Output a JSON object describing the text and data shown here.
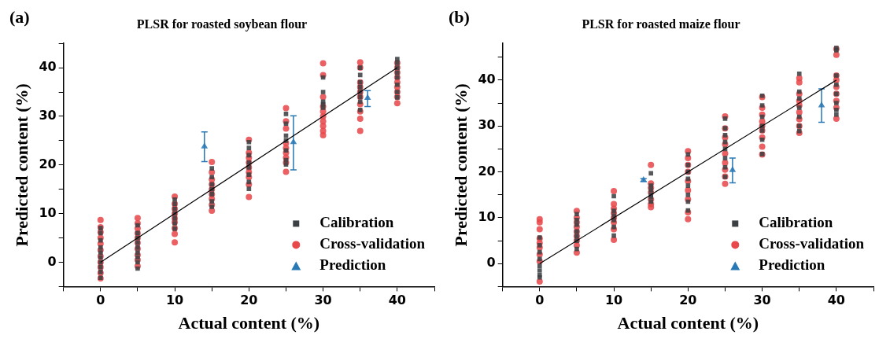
{
  "chart_data": [
    {
      "type": "scatter",
      "title": "PLSR for roasted soybean flour",
      "xlabel": "Actual content (%)",
      "ylabel": "Predicted content (%)",
      "annotations": [
        "(a)"
      ],
      "xlim": [
        -5,
        45
      ],
      "ylim": [
        -5,
        45
      ],
      "xticks": [
        {
          "value": -5,
          "label": null
        },
        0,
        {
          "value": 5,
          "label": null
        },
        10,
        {
          "value": 15,
          "label": null
        },
        20,
        {
          "value": 25,
          "label": null
        },
        30,
        {
          "value": 35,
          "label": null
        },
        40,
        {
          "value": 45,
          "label": null
        }
      ],
      "yticks": [
        {
          "value": -5,
          "label": null
        },
        0,
        {
          "value": 5,
          "label": null
        },
        10,
        {
          "value": 15,
          "label": null
        },
        20,
        {
          "value": 25,
          "label": null
        },
        30,
        {
          "value": 35,
          "label": null
        },
        40,
        {
          "value": 45,
          "label": null
        }
      ],
      "grid": false,
      "legend": "bottom right",
      "series": [
        {
          "type": "line",
          "color": "#000000",
          "marker": "none",
          "x": [
            0,
            40
          ],
          "values": [
            0,
            40
          ]
        },
        {
          "name": "Calibration",
          "color": "#3c4043",
          "marker": "square",
          "x": [
            0,
            0,
            0,
            0,
            0,
            0,
            0,
            0,
            0,
            0,
            5,
            5,
            5,
            5,
            5,
            5,
            5,
            5,
            5,
            10,
            10,
            10,
            10,
            10,
            10,
            10,
            15,
            15,
            15,
            15,
            15,
            15,
            15,
            20,
            20,
            20,
            20,
            20,
            20,
            20,
            20,
            25,
            25,
            25,
            25,
            25,
            25,
            25,
            30,
            30,
            30,
            30,
            30,
            35,
            35,
            35,
            35,
            35,
            35,
            35,
            35,
            40,
            40,
            40,
            40,
            40,
            40,
            40,
            40
          ],
          "values": [
            -3.2,
            -2,
            -1,
            0,
            1,
            2,
            3,
            4.5,
            6,
            7,
            -1.3,
            0,
            1,
            2,
            3,
            4,
            5,
            6,
            7.6,
            6.9,
            8,
            9,
            10,
            11,
            12,
            12.9,
            11.4,
            12.5,
            14,
            15,
            16,
            17.5,
            19.3,
            15.1,
            16.5,
            18,
            19.5,
            20.5,
            22,
            23.5,
            24.7,
            20.1,
            21,
            23,
            25,
            26,
            28.5,
            30.5,
            31.8,
            32.5,
            33,
            35,
            38,
            31.3,
            33,
            34,
            35,
            36,
            37,
            38.5,
            40,
            33.9,
            35,
            36.5,
            38,
            39,
            40,
            41,
            41.8
          ]
        },
        {
          "name": "Cross-validation",
          "color": "#e8484a",
          "marker": "circle",
          "x": [
            0,
            0,
            0,
            0,
            0,
            0,
            0,
            0,
            0,
            0,
            0,
            5,
            5,
            5,
            5,
            5,
            5,
            5,
            5,
            5,
            5,
            10,
            10,
            10,
            10,
            10,
            10,
            10,
            10,
            10,
            15,
            15,
            15,
            15,
            15,
            15,
            15,
            15,
            15,
            20,
            20,
            20,
            20,
            20,
            20,
            20,
            20,
            20,
            25,
            25,
            25,
            25,
            25,
            25,
            25,
            25,
            25,
            30,
            30,
            30,
            30,
            30,
            30,
            30,
            30,
            30,
            30,
            35,
            35,
            35,
            35,
            35,
            35,
            35,
            35,
            35,
            35,
            40,
            40,
            40,
            40,
            40,
            40,
            40,
            40,
            40
          ],
          "values": [
            -3.3,
            -2.2,
            -1,
            0,
            1.2,
            2.5,
            3.8,
            5,
            6.2,
            7.2,
            8.7,
            -0.8,
            0.5,
            1.5,
            2.8,
            4,
            5,
            6,
            7,
            8,
            9.1,
            4.1,
            5.8,
            7,
            8.2,
            9,
            10,
            11,
            12,
            13.5,
            10.6,
            11.8,
            13,
            14,
            15,
            16,
            17,
            18.5,
            20.6,
            13.4,
            16,
            17.5,
            18.5,
            19.5,
            20.5,
            21.5,
            22.5,
            25.2,
            18.6,
            20.5,
            21.5,
            22.5,
            23.5,
            24.5,
            27.5,
            29,
            31.7,
            26.1,
            27,
            28,
            29,
            30,
            31,
            32,
            34,
            38.5,
            40.9,
            27,
            29.5,
            31,
            32.5,
            34,
            35,
            36,
            37,
            40,
            41.1,
            32.7,
            34,
            35,
            36,
            37,
            38,
            39,
            40,
            41
          ]
        },
        {
          "name": "Prediction",
          "color": "#2878b5",
          "marker": "triangle",
          "x": [
            14,
            26,
            36
          ],
          "values": [
            23.8,
            24.7,
            33.8
          ],
          "errors": [
            [
              20.7,
              26.8
            ],
            [
              19.0,
              30.1
            ],
            [
              32.0,
              35.3
            ]
          ]
        }
      ]
    },
    {
      "type": "scatter",
      "title": "PLSR for roasted maize flour",
      "xlabel": "Actual content (%)",
      "ylabel": "Predicted content (%)",
      "annotations": [
        "(b)"
      ],
      "xlim": [
        -5,
        45
      ],
      "ylim": [
        -5,
        48
      ],
      "xticks": [
        {
          "value": -5,
          "label": null
        },
        0,
        {
          "value": 5,
          "label": null
        },
        10,
        {
          "value": 15,
          "label": null
        },
        20,
        {
          "value": 25,
          "label": null
        },
        30,
        {
          "value": 35,
          "label": null
        },
        40,
        {
          "value": 45,
          "label": null
        }
      ],
      "yticks": [
        {
          "value": -5,
          "label": null
        },
        0,
        {
          "value": 5,
          "label": null
        },
        10,
        {
          "value": 15,
          "label": null
        },
        20,
        {
          "value": 25,
          "label": null
        },
        30,
        {
          "value": 35,
          "label": null
        },
        40,
        {
          "value": 45,
          "label": null
        }
      ],
      "grid": false,
      "legend": "bottom right",
      "series": [
        {
          "type": "line",
          "color": "#000000",
          "marker": "none",
          "x": [
            0,
            40
          ],
          "values": [
            0,
            40
          ]
        },
        {
          "name": "Calibration",
          "color": "#3c4043",
          "marker": "square",
          "x": [
            0,
            0,
            0,
            0,
            0,
            0,
            0,
            0,
            5,
            5,
            5,
            5,
            5,
            5,
            5,
            10,
            10,
            10,
            10,
            10,
            10,
            15,
            15,
            15,
            15,
            15,
            15,
            20,
            20,
            20,
            20,
            20,
            20,
            20,
            20,
            25,
            25,
            25,
            25,
            25,
            25,
            25,
            25,
            30,
            30,
            30,
            30,
            30,
            30,
            30,
            35,
            35,
            35,
            35,
            35,
            35,
            35,
            40,
            40,
            40,
            40,
            40,
            40,
            40,
            40
          ],
          "values": [
            -3,
            -2.5,
            -1.5,
            -0.5,
            1,
            2.5,
            4,
            5.7,
            3.2,
            5,
            6,
            7,
            8.5,
            9.5,
            10.8,
            6.1,
            8,
            9.5,
            10.5,
            11.5,
            14.7,
            13.5,
            14.5,
            15,
            16,
            17,
            19.7,
            11.6,
            13.5,
            15,
            17,
            18.5,
            20,
            21.5,
            23.8,
            18.9,
            21,
            23,
            25,
            26.5,
            28,
            29.5,
            31.6,
            23.9,
            27,
            29,
            30,
            32,
            34.5,
            36.6,
            28.9,
            30,
            32,
            34,
            36,
            37.5,
            41.4,
            32.5,
            33.5,
            35,
            37,
            39,
            41,
            46.5,
            47
          ]
        },
        {
          "name": "Cross-validation",
          "color": "#e8484a",
          "marker": "circle",
          "x": [
            0,
            0,
            0,
            0,
            0,
            0,
            0,
            0,
            0,
            5,
            5,
            5,
            5,
            5,
            5,
            5,
            5,
            5,
            10,
            10,
            10,
            10,
            10,
            10,
            10,
            10,
            15,
            15,
            15,
            15,
            15,
            15,
            15,
            20,
            20,
            20,
            20,
            20,
            20,
            20,
            20,
            20,
            25,
            25,
            25,
            25,
            25,
            25,
            25,
            25,
            25,
            30,
            30,
            30,
            30,
            30,
            30,
            30,
            30,
            30,
            35,
            35,
            35,
            35,
            35,
            35,
            35,
            35,
            35,
            40,
            40,
            40,
            40,
            40,
            40,
            40,
            40,
            40
          ],
          "values": [
            -3.9,
            0.5,
            2,
            3.5,
            4.5,
            5.5,
            7.5,
            9,
            9.7,
            2.4,
            4,
            5,
            6,
            7,
            8,
            9,
            10,
            11.5,
            5.2,
            7.5,
            9,
            10,
            11,
            12,
            13,
            15.8,
            12.3,
            13,
            14,
            15.5,
            16.5,
            17.5,
            21.5,
            9.7,
            11.2,
            14,
            16,
            18,
            20,
            21.5,
            23,
            24.5,
            17.4,
            19,
            20.5,
            22,
            24,
            26,
            27.5,
            29.5,
            32.1,
            23.8,
            25.5,
            27.5,
            29,
            30,
            31,
            32.5,
            34,
            36.3,
            28.5,
            30,
            31.5,
            33,
            34.5,
            35.5,
            37,
            39.5,
            40.4,
            31.6,
            34,
            35.5,
            37,
            38.5,
            40,
            41,
            45.5,
            46.8
          ]
        },
        {
          "name": "Prediction",
          "color": "#2878b5",
          "marker": "triangle",
          "x": [
            14,
            26,
            38
          ],
          "values": [
            18.2,
            20.4,
            34.5
          ],
          "errors": [
            0.3,
            [
              17.6,
              23.0
            ],
            [
              30.8,
              38.1
            ]
          ]
        }
      ]
    }
  ]
}
